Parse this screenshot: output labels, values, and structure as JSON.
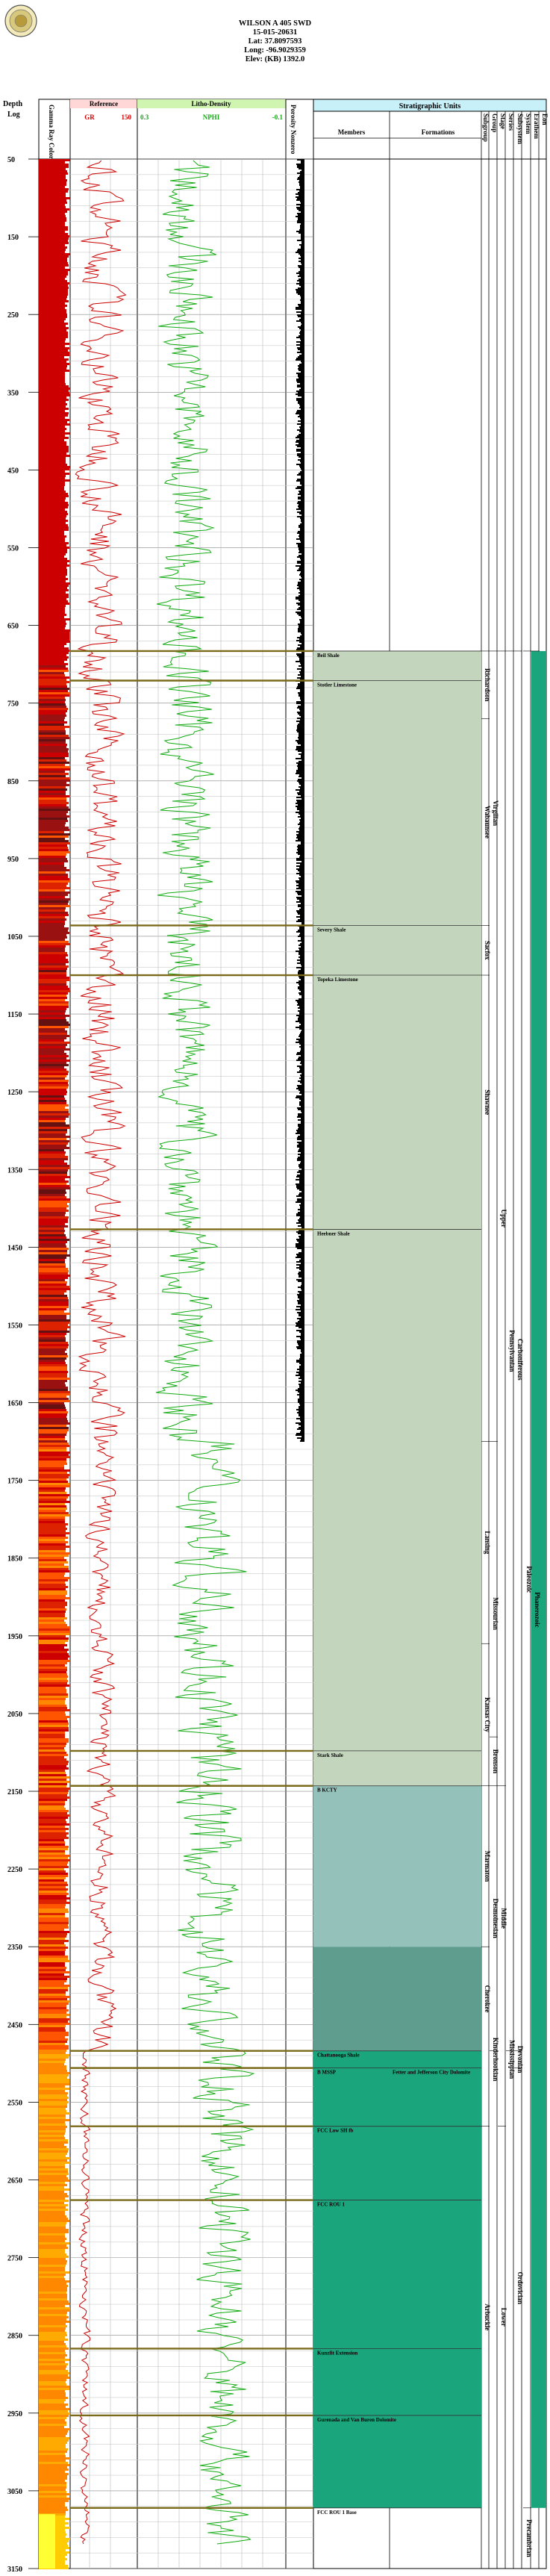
{
  "well": {
    "name": "WILSON A 405 SWD",
    "api": "15-015-20631",
    "lat": "Lat: 37.8097593",
    "long": "Long: -96.9029359",
    "elev": "Elev: (KB) 1392.0"
  },
  "logo_icon": "kgs-seal-icon",
  "columns": {
    "depth_title": "Depth",
    "depth_unit": "Log",
    "gamma": "Gamma Ray Coloring",
    "reference": "Reference",
    "gr_min": "GR",
    "gr_max": "150",
    "litho": "Litho-Density",
    "litho_min": "0.3",
    "nphi": "NPHI",
    "litho_max": "-0.1",
    "porosity": "Porosity Nonzero",
    "strat_title": "Stratigraphic Units",
    "members": "Members",
    "formations": "Formations",
    "subgroup": "Subgroup",
    "group": "Group",
    "stage": "Stage",
    "series": "Series",
    "subsystem": "Subsystem",
    "system": "System",
    "erathem": "Erathem",
    "eon": "Eon"
  },
  "depth": {
    "min": 50,
    "max": 3150,
    "ticks": [
      50,
      150,
      250,
      350,
      450,
      550,
      650,
      750,
      850,
      950,
      1050,
      1150,
      1250,
      1350,
      1450,
      1550,
      1650,
      1750,
      1850,
      1950,
      2050,
      2150,
      2250,
      2350,
      2450,
      2550,
      2650,
      2750,
      2850,
      2950,
      3050,
      3150
    ]
  },
  "tops": [
    {
      "name": "Beil Shale",
      "depth": 683
    },
    {
      "name": "Stotler Limestone",
      "depth": 721
    },
    {
      "name": "Severy Shale",
      "depth": 1036
    },
    {
      "name": "Topeka Limestone",
      "depth": 1100
    },
    {
      "name": "Heebner Shale",
      "depth": 1427
    },
    {
      "name": "Stark Shale",
      "depth": 2098
    },
    {
      "name": "B KCTY",
      "depth": 2143
    },
    {
      "name": "Chattanooga Shale",
      "depth": 2484
    },
    {
      "name": "B MSSP",
      "depth": 2506
    },
    {
      "name": "FCC Low SH fb",
      "depth": 2581
    },
    {
      "name": "FCC ROU 1",
      "depth": 2676
    },
    {
      "name": "Kunzfit Extension",
      "depth": 2867
    },
    {
      "name": "Gurenada and Van Buren Dolomite",
      "depth": 2953
    },
    {
      "name": "FCC ROU 1 Base",
      "depth": 3072
    }
  ],
  "formations": [
    {
      "name": "Fetter and Jefferson City Dolomite",
      "depth": 2506
    }
  ],
  "units": {
    "subgroup": [
      {
        "name": "Richardson",
        "top": 683,
        "base": 770
      },
      {
        "name": "Wabaunsee",
        "top": 770,
        "base": 1036
      },
      {
        "name": "Sacfox",
        "top": 1036,
        "base": 1100
      },
      {
        "name": "Shawnee",
        "top": 1100,
        "base": 1427
      },
      {
        "name": "Lansing",
        "top": 1700,
        "base": 1960
      },
      {
        "name": "Kansas City",
        "top": 1960,
        "base": 2143
      },
      {
        "name": "Marmaton",
        "top": 2143,
        "base": 2350
      },
      {
        "name": "Cherokee",
        "top": 2350,
        "base": 2484
      },
      {
        "name": "Arbuckle",
        "top": 2581,
        "base": 3072
      }
    ],
    "group": [
      {
        "name": "Virgilian",
        "top": 683,
        "base": 1100
      },
      {
        "name": "Missourian",
        "top": 1700,
        "base": 2143
      },
      {
        "name": "Bronson",
        "top": 2080,
        "base": 2143
      },
      {
        "name": "Desmoinesian",
        "top": 2143,
        "base": 2484
      },
      {
        "name": "Kinderhookian",
        "top": 2484,
        "base": 2506
      }
    ],
    "stage": [
      {
        "name": "Upper",
        "top": 683,
        "base": 2143
      },
      {
        "name": "Middle",
        "top": 2143,
        "base": 2484
      },
      {
        "name": "Lower",
        "top": 2581,
        "base": 3072
      }
    ],
    "series": [
      {
        "name": "Pennsylvanian",
        "top": 683,
        "base": 2484
      },
      {
        "name": "Mississippian",
        "top": 2484,
        "base": 2506
      }
    ],
    "subsystem": [
      {
        "name": "Carboniferous",
        "top": 683,
        "base": 2506
      },
      {
        "name": "Devonian",
        "top": 2484,
        "base": 2506
      },
      {
        "name": "Ordovician",
        "top": 2506,
        "base": 3072
      }
    ],
    "system": [
      {
        "name": "Paleozoic",
        "top": 683,
        "base": 3072
      },
      {
        "name": "Precambrian",
        "top": 3072,
        "base": 3150
      }
    ],
    "erathem": [
      {
        "name": "Phanerozoic",
        "top": 683,
        "base": 3150
      }
    ]
  },
  "colors": {
    "upper_fill": "#c3d5bd",
    "middle_fill": "#95c1bb",
    "cherokee_fill": "#5f9e8f",
    "lower_fill": "#1aa57c",
    "top_line": "#7a6a1a",
    "gr_curve": "#cc0000",
    "nphi_curve": "#11aa11",
    "strat_header": "#c8f0f8",
    "ref_header": "#ffd7d7",
    "litho_header": "#d0f5b0"
  }
}
